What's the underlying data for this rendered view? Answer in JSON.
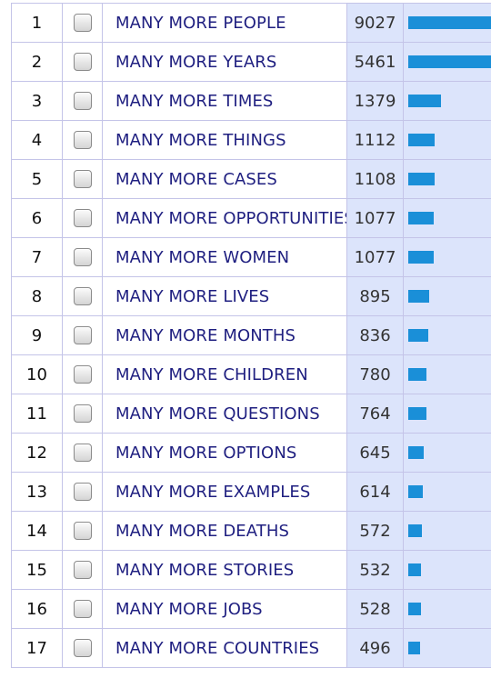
{
  "table": {
    "rows": [
      {
        "rank": "1",
        "word": "MANY MORE PEOPLE",
        "freq": "9027"
      },
      {
        "rank": "2",
        "word": "MANY MORE YEARS",
        "freq": "5461"
      },
      {
        "rank": "3",
        "word": "MANY MORE TIMES",
        "freq": "1379"
      },
      {
        "rank": "4",
        "word": "MANY MORE THINGS",
        "freq": "1112"
      },
      {
        "rank": "5",
        "word": "MANY MORE CASES",
        "freq": "1108"
      },
      {
        "rank": "6",
        "word": "MANY MORE OPPORTUNITIES",
        "freq": "1077"
      },
      {
        "rank": "7",
        "word": "MANY MORE WOMEN",
        "freq": "1077"
      },
      {
        "rank": "8",
        "word": "MANY MORE LIVES",
        "freq": "895"
      },
      {
        "rank": "9",
        "word": "MANY MORE MONTHS",
        "freq": "836"
      },
      {
        "rank": "10",
        "word": "MANY MORE CHILDREN",
        "freq": "780"
      },
      {
        "rank": "11",
        "word": "MANY MORE QUESTIONS",
        "freq": "764"
      },
      {
        "rank": "12",
        "word": "MANY MORE OPTIONS",
        "freq": "645"
      },
      {
        "rank": "13",
        "word": "MANY MORE EXAMPLES",
        "freq": "614"
      },
      {
        "rank": "14",
        "word": "MANY MORE DEATHS",
        "freq": "572"
      },
      {
        "rank": "15",
        "word": "MANY MORE STORIES",
        "freq": "532"
      },
      {
        "rank": "16",
        "word": "MANY MORE JOBS",
        "freq": "528"
      },
      {
        "rank": "17",
        "word": "MANY MORE COUNTRIES",
        "freq": "496"
      }
    ]
  },
  "colors": {
    "bar": "#1a8fd8",
    "freq_background": "#dce4fb",
    "word_text": "#1f1f80",
    "grid": "#c4c4e8"
  },
  "icons": {
    "row_select": "checkbox-icon"
  }
}
